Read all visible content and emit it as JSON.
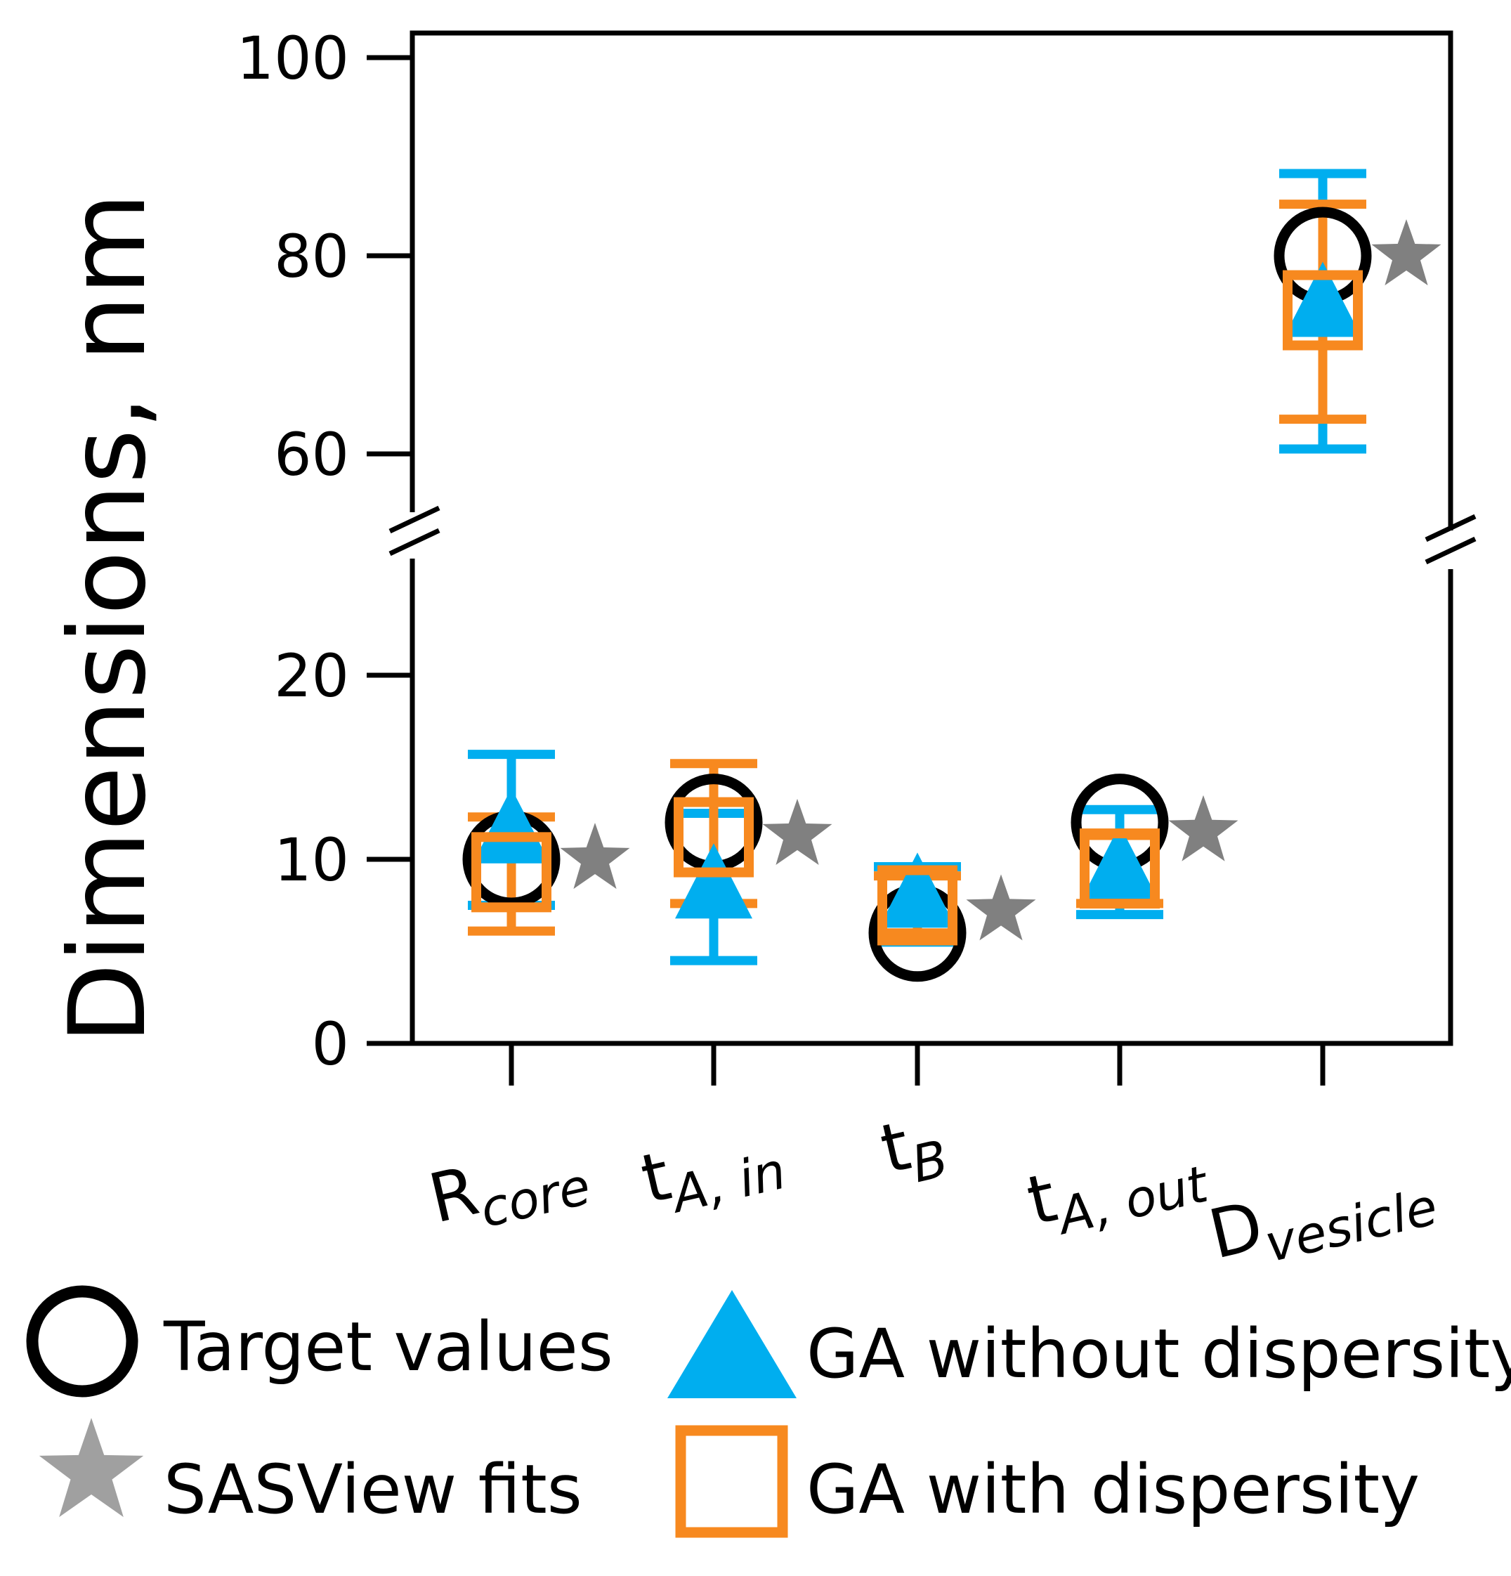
{
  "chart_data": {
    "type": "scatter",
    "title": "",
    "ylabel": "Dimensions, nm",
    "xlabel": "",
    "ylim": [
      0,
      100
    ],
    "y_axis_break": [
      24,
      56
    ],
    "y_ticks": [
      0,
      10,
      20,
      60,
      80,
      100
    ],
    "y_tick_labels": [
      "0",
      "10",
      "20",
      "60",
      "80",
      "100"
    ],
    "grid": false,
    "legend_placement": "bottom",
    "categories": [
      {
        "main": "R",
        "sub": "core"
      },
      {
        "main": "t",
        "sub": "A, in"
      },
      {
        "main": "t",
        "sub": "B"
      },
      {
        "main": "t",
        "sub": "A, out"
      },
      {
        "main": "D",
        "sub": "vesicle"
      }
    ],
    "series": [
      {
        "name": "Target values",
        "marker": "circle-open",
        "color": "#000000",
        "values": [
          10,
          12,
          6,
          12,
          80
        ]
      },
      {
        "name": "GA without dispersity",
        "marker": "triangle",
        "color": "#00AEEF",
        "values": [
          11.5,
          8.5,
          8,
          9.5,
          75
        ],
        "error_low": [
          7.5,
          4.5,
          5.5,
          7,
          60.5
        ],
        "error_high": [
          15.7,
          12.5,
          9.6,
          12.7,
          88.3
        ]
      },
      {
        "name": "GA with dispersity",
        "marker": "square-open",
        "color": "#F7891F",
        "values": [
          9.3,
          11.2,
          7.5,
          9.5,
          74.5
        ],
        "error_low": [
          6.1,
          7.6,
          6,
          7.6,
          63.5
        ],
        "error_high": [
          12.3,
          15.2,
          9.1,
          11.3,
          85.2
        ]
      },
      {
        "name": "SASView fits",
        "marker": "star",
        "color": "#808080",
        "values": [
          10,
          11.3,
          7.2,
          11.5,
          80
        ]
      }
    ]
  },
  "legend": {
    "target": "Target values",
    "ga_without": "GA without dispersity",
    "sasview": "SASView fits",
    "ga_with": "GA with dispersity"
  }
}
